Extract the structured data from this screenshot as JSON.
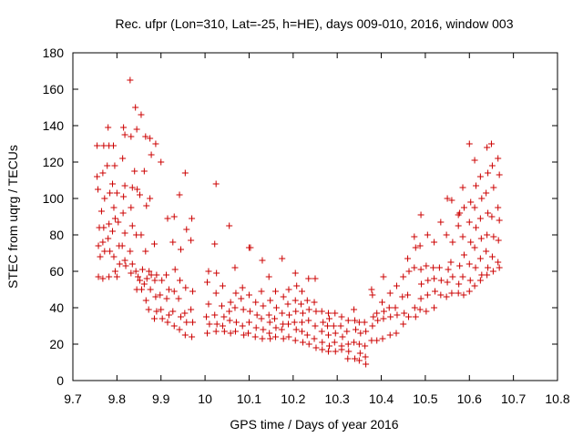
{
  "chart_data": {
    "type": "scatter",
    "title": "Rec. ufpr (Lon=310, Lat=-25, h=HE), days 009-010, 2016, window 003",
    "xlabel": "GPS time / Days of year 2016",
    "ylabel": "STEC from uqrg / TECUs",
    "xlim": [
      9.7,
      10.8
    ],
    "ylim": [
      0,
      180
    ],
    "xticks": [
      9.7,
      9.8,
      9.9,
      10.0,
      10.1,
      10.2,
      10.3,
      10.4,
      10.5,
      10.6,
      10.7,
      10.8
    ],
    "xtick_labels": [
      "9.7",
      "9.8",
      "9.9",
      "10",
      "10.1",
      "10.2",
      "10.3",
      "10.4",
      "10.5",
      "10.6",
      "10.7",
      "10.8"
    ],
    "yticks": [
      0,
      20,
      40,
      60,
      80,
      100,
      120,
      140,
      160,
      180
    ],
    "ytick_labels": [
      "0",
      "20",
      "40",
      "60",
      "80",
      "100",
      "120",
      "140",
      "160",
      "180"
    ],
    "grid": false,
    "marker": "+",
    "color": "#cc0000",
    "points": [
      [
        9.755,
        129
      ],
      [
        9.755,
        112
      ],
      [
        9.757,
        105
      ],
      [
        9.76,
        84
      ],
      [
        9.758,
        74
      ],
      [
        9.762,
        68
      ],
      [
        9.758,
        57
      ],
      [
        9.77,
        129
      ],
      [
        9.768,
        114
      ],
      [
        9.772,
        100
      ],
      [
        9.765,
        93
      ],
      [
        9.77,
        84
      ],
      [
        9.768,
        76
      ],
      [
        9.772,
        71
      ],
      [
        9.768,
        56
      ],
      [
        9.78,
        139
      ],
      [
        9.782,
        129
      ],
      [
        9.778,
        118
      ],
      [
        9.784,
        103
      ],
      [
        9.782,
        86
      ],
      [
        9.78,
        78
      ],
      [
        9.784,
        71
      ],
      [
        9.782,
        57
      ],
      [
        9.792,
        129
      ],
      [
        9.795,
        118
      ],
      [
        9.79,
        108
      ],
      [
        9.793,
        95
      ],
      [
        9.796,
        89
      ],
      [
        9.79,
        82
      ],
      [
        9.793,
        68
      ],
      [
        9.796,
        60
      ],
      [
        9.8,
        103
      ],
      [
        9.803,
        87
      ],
      [
        9.805,
        74
      ],
      [
        9.806,
        64
      ],
      [
        9.8,
        57
      ],
      [
        9.815,
        139
      ],
      [
        9.818,
        135
      ],
      [
        9.813,
        122
      ],
      [
        9.818,
        107
      ],
      [
        9.815,
        101
      ],
      [
        9.814,
        92
      ],
      [
        9.818,
        81
      ],
      [
        9.812,
        74
      ],
      [
        9.818,
        66
      ],
      [
        9.82,
        63
      ],
      [
        9.83,
        165
      ],
      [
        9.832,
        134
      ],
      [
        9.835,
        106
      ],
      [
        9.832,
        95
      ],
      [
        9.835,
        85
      ],
      [
        9.83,
        71
      ],
      [
        9.835,
        64
      ],
      [
        9.832,
        59
      ],
      [
        9.842,
        150
      ],
      [
        9.845,
        138
      ],
      [
        9.84,
        115
      ],
      [
        9.846,
        105
      ],
      [
        9.844,
        80
      ],
      [
        9.843,
        60
      ],
      [
        9.848,
        57
      ],
      [
        9.845,
        50
      ],
      [
        9.855,
        146
      ],
      [
        9.852,
        102
      ],
      [
        9.855,
        80
      ],
      [
        9.858,
        61
      ],
      [
        9.852,
        55
      ],
      [
        9.856,
        50
      ],
      [
        9.865,
        134
      ],
      [
        9.862,
        115
      ],
      [
        9.867,
        96
      ],
      [
        9.865,
        71
      ],
      [
        9.868,
        56
      ],
      [
        9.862,
        53
      ],
      [
        9.866,
        44
      ],
      [
        9.875,
        133
      ],
      [
        9.878,
        124
      ],
      [
        9.875,
        100
      ],
      [
        9.873,
        60
      ],
      [
        9.878,
        58
      ],
      [
        9.876,
        50
      ],
      [
        9.872,
        39
      ],
      [
        9.888,
        130
      ],
      [
        9.885,
        75
      ],
      [
        9.89,
        58
      ],
      [
        9.886,
        55
      ],
      [
        9.888,
        46
      ],
      [
        9.89,
        38
      ],
      [
        9.885,
        34
      ],
      [
        9.9,
        120
      ],
      [
        9.902,
        55
      ],
      [
        9.898,
        47
      ],
      [
        9.9,
        39
      ],
      [
        9.903,
        34
      ],
      [
        9.915,
        89
      ],
      [
        9.912,
        58
      ],
      [
        9.918,
        50
      ],
      [
        9.913,
        45
      ],
      [
        9.918,
        36
      ],
      [
        9.915,
        32
      ],
      [
        9.93,
        90
      ],
      [
        9.927,
        76
      ],
      [
        9.932,
        61
      ],
      [
        9.93,
        49
      ],
      [
        9.927,
        38
      ],
      [
        9.93,
        30
      ],
      [
        9.942,
        102
      ],
      [
        9.945,
        72
      ],
      [
        9.943,
        55
      ],
      [
        9.94,
        45
      ],
      [
        9.945,
        35
      ],
      [
        9.942,
        28
      ],
      [
        9.955,
        114
      ],
      [
        9.958,
        83
      ],
      [
        9.956,
        51
      ],
      [
        9.954,
        37
      ],
      [
        9.958,
        32
      ],
      [
        9.955,
        25
      ],
      [
        9.97,
        89
      ],
      [
        9.968,
        77
      ],
      [
        9.972,
        49
      ],
      [
        9.968,
        39
      ],
      [
        9.972,
        32
      ],
      [
        9.97,
        24
      ],
      [
        10.008,
        60
      ],
      [
        10.005,
        54
      ],
      [
        10.008,
        42
      ],
      [
        10.003,
        35
      ],
      [
        10.01,
        31
      ],
      [
        10.005,
        26
      ],
      [
        10.025,
        108
      ],
      [
        10.022,
        75
      ],
      [
        10.026,
        59
      ],
      [
        10.025,
        48
      ],
      [
        10.022,
        36
      ],
      [
        10.027,
        31
      ],
      [
        10.025,
        27
      ],
      [
        10.04,
        52
      ],
      [
        10.038,
        41
      ],
      [
        10.043,
        35
      ],
      [
        10.04,
        30
      ],
      [
        10.044,
        27
      ],
      [
        10.055,
        85
      ],
      [
        10.058,
        43
      ],
      [
        10.055,
        38
      ],
      [
        10.056,
        33
      ],
      [
        10.058,
        26
      ],
      [
        10.068,
        62
      ],
      [
        10.07,
        48
      ],
      [
        10.068,
        40
      ],
      [
        10.071,
        32
      ],
      [
        10.069,
        27
      ],
      [
        10.085,
        51
      ],
      [
        10.082,
        45
      ],
      [
        10.087,
        39
      ],
      [
        10.085,
        30
      ],
      [
        10.088,
        25
      ],
      [
        10.1,
        73
      ],
      [
        10.103,
        73
      ],
      [
        10.1,
        47
      ],
      [
        10.102,
        38
      ],
      [
        10.1,
        32
      ],
      [
        10.098,
        26
      ],
      [
        10.115,
        43
      ],
      [
        10.118,
        36
      ],
      [
        10.116,
        29
      ],
      [
        10.114,
        24
      ],
      [
        10.13,
        66
      ],
      [
        10.128,
        49
      ],
      [
        10.132,
        41
      ],
      [
        10.128,
        34
      ],
      [
        10.132,
        28
      ],
      [
        10.13,
        23
      ],
      [
        10.145,
        57
      ],
      [
        10.148,
        44
      ],
      [
        10.145,
        36
      ],
      [
        10.147,
        32
      ],
      [
        10.146,
        26
      ],
      [
        10.148,
        23
      ],
      [
        10.16,
        49
      ],
      [
        10.162,
        40
      ],
      [
        10.158,
        34
      ],
      [
        10.161,
        29
      ],
      [
        10.16,
        24
      ],
      [
        10.175,
        67
      ],
      [
        10.178,
        46
      ],
      [
        10.175,
        37
      ],
      [
        10.177,
        31
      ],
      [
        10.174,
        28
      ],
      [
        10.178,
        23
      ],
      [
        10.19,
        50
      ],
      [
        10.188,
        42
      ],
      [
        10.191,
        36
      ],
      [
        10.189,
        31
      ],
      [
        10.19,
        24
      ],
      [
        10.205,
        59
      ],
      [
        10.208,
        52
      ],
      [
        10.205,
        44
      ],
      [
        10.206,
        38
      ],
      [
        10.203,
        32
      ],
      [
        10.207,
        28
      ],
      [
        10.205,
        22
      ],
      [
        10.22,
        49
      ],
      [
        10.218,
        42
      ],
      [
        10.222,
        37
      ],
      [
        10.22,
        32
      ],
      [
        10.22,
        27
      ],
      [
        10.222,
        21
      ],
      [
        10.235,
        56
      ],
      [
        10.232,
        44
      ],
      [
        10.236,
        39
      ],
      [
        10.235,
        33
      ],
      [
        10.232,
        25
      ],
      [
        10.236,
        20
      ],
      [
        10.25,
        56
      ],
      [
        10.248,
        43
      ],
      [
        10.252,
        38
      ],
      [
        10.25,
        30
      ],
      [
        10.248,
        23
      ],
      [
        10.252,
        18
      ],
      [
        10.265,
        38
      ],
      [
        10.268,
        32
      ],
      [
        10.265,
        27
      ],
      [
        10.266,
        21
      ],
      [
        10.266,
        17
      ],
      [
        10.28,
        37
      ],
      [
        10.282,
        34
      ],
      [
        10.278,
        30
      ],
      [
        10.28,
        25
      ],
      [
        10.282,
        19
      ],
      [
        10.28,
        16
      ],
      [
        10.295,
        37
      ],
      [
        10.292,
        30
      ],
      [
        10.296,
        26
      ],
      [
        10.294,
        21
      ],
      [
        10.296,
        16
      ],
      [
        10.31,
        35
      ],
      [
        10.308,
        30
      ],
      [
        10.312,
        24
      ],
      [
        10.31,
        19
      ],
      [
        10.31,
        17
      ],
      [
        10.325,
        33
      ],
      [
        10.322,
        27
      ],
      [
        10.325,
        20
      ],
      [
        10.326,
        16
      ],
      [
        10.324,
        12
      ],
      [
        10.338,
        39
      ],
      [
        10.34,
        33
      ],
      [
        10.342,
        28
      ],
      [
        10.338,
        21
      ],
      [
        10.34,
        12
      ],
      [
        10.35,
        32
      ],
      [
        10.353,
        26
      ],
      [
        10.35,
        20
      ],
      [
        10.352,
        15
      ],
      [
        10.35,
        11
      ],
      [
        10.362,
        32
      ],
      [
        10.365,
        27
      ],
      [
        10.363,
        19
      ],
      [
        10.364,
        13
      ],
      [
        10.365,
        9
      ],
      [
        10.378,
        50
      ],
      [
        10.38,
        47
      ],
      [
        10.382,
        35
      ],
      [
        10.38,
        30
      ],
      [
        10.378,
        22
      ],
      [
        10.39,
        37
      ],
      [
        10.392,
        33
      ],
      [
        10.39,
        22
      ],
      [
        10.405,
        57
      ],
      [
        10.402,
        43
      ],
      [
        10.406,
        38
      ],
      [
        10.405,
        34
      ],
      [
        10.403,
        23
      ],
      [
        10.42,
        48
      ],
      [
        10.418,
        40
      ],
      [
        10.421,
        35
      ],
      [
        10.42,
        25
      ],
      [
        10.435,
        52
      ],
      [
        10.432,
        40
      ],
      [
        10.436,
        36
      ],
      [
        10.434,
        26
      ],
      [
        10.45,
        57
      ],
      [
        10.448,
        46
      ],
      [
        10.452,
        37
      ],
      [
        10.45,
        31
      ],
      [
        10.46,
        67
      ],
      [
        10.463,
        60
      ],
      [
        10.46,
        47
      ],
      [
        10.462,
        35
      ],
      [
        10.475,
        79
      ],
      [
        10.478,
        73
      ],
      [
        10.475,
        62
      ],
      [
        10.476,
        40
      ],
      [
        10.478,
        35
      ],
      [
        10.49,
        91
      ],
      [
        10.488,
        74
      ],
      [
        10.49,
        61
      ],
      [
        10.491,
        53
      ],
      [
        10.49,
        45
      ],
      [
        10.488,
        39
      ],
      [
        10.505,
        80
      ],
      [
        10.502,
        63
      ],
      [
        10.506,
        55
      ],
      [
        10.505,
        47
      ],
      [
        10.502,
        38
      ],
      [
        10.52,
        76
      ],
      [
        10.518,
        62
      ],
      [
        10.52,
        56
      ],
      [
        10.522,
        49
      ],
      [
        10.52,
        40
      ],
      [
        10.535,
        87
      ],
      [
        10.532,
        62
      ],
      [
        10.536,
        55
      ],
      [
        10.535,
        47
      ],
      [
        10.55,
        100
      ],
      [
        10.548,
        80
      ],
      [
        10.552,
        61
      ],
      [
        10.55,
        54
      ],
      [
        10.548,
        46
      ],
      [
        10.56,
        99
      ],
      [
        10.562,
        76
      ],
      [
        10.558,
        65
      ],
      [
        10.562,
        57
      ],
      [
        10.56,
        48
      ],
      [
        10.575,
        91
      ],
      [
        10.578,
        92
      ],
      [
        10.575,
        85
      ],
      [
        10.578,
        63
      ],
      [
        10.576,
        53
      ],
      [
        10.575,
        48
      ],
      [
        10.585,
        106
      ],
      [
        10.588,
        95
      ],
      [
        10.585,
        79
      ],
      [
        10.588,
        69
      ],
      [
        10.585,
        57
      ],
      [
        10.587,
        47
      ],
      [
        10.6,
        130
      ],
      [
        10.603,
        98
      ],
      [
        10.6,
        87
      ],
      [
        10.603,
        76
      ],
      [
        10.6,
        64
      ],
      [
        10.602,
        55
      ],
      [
        10.6,
        49
      ],
      [
        10.612,
        121
      ],
      [
        10.615,
        107
      ],
      [
        10.612,
        95
      ],
      [
        10.615,
        84
      ],
      [
        10.612,
        73
      ],
      [
        10.614,
        62
      ],
      [
        10.612,
        52
      ],
      [
        10.625,
        112
      ],
      [
        10.628,
        100
      ],
      [
        10.625,
        89
      ],
      [
        10.627,
        78
      ],
      [
        10.625,
        67
      ],
      [
        10.628,
        58
      ],
      [
        10.625,
        55
      ],
      [
        10.64,
        128
      ],
      [
        10.642,
        114
      ],
      [
        10.638,
        103
      ],
      [
        10.642,
        92
      ],
      [
        10.64,
        80
      ],
      [
        10.638,
        71
      ],
      [
        10.642,
        62
      ],
      [
        10.64,
        58
      ],
      [
        10.65,
        130
      ],
      [
        10.652,
        118
      ],
      [
        10.655,
        106
      ],
      [
        10.651,
        90
      ],
      [
        10.655,
        79
      ],
      [
        10.652,
        68
      ],
      [
        10.654,
        60
      ],
      [
        10.665,
        122
      ],
      [
        10.668,
        113
      ],
      [
        10.665,
        95
      ],
      [
        10.668,
        88
      ],
      [
        10.666,
        77
      ],
      [
        10.665,
        65
      ],
      [
        10.668,
        62
      ]
    ]
  }
}
